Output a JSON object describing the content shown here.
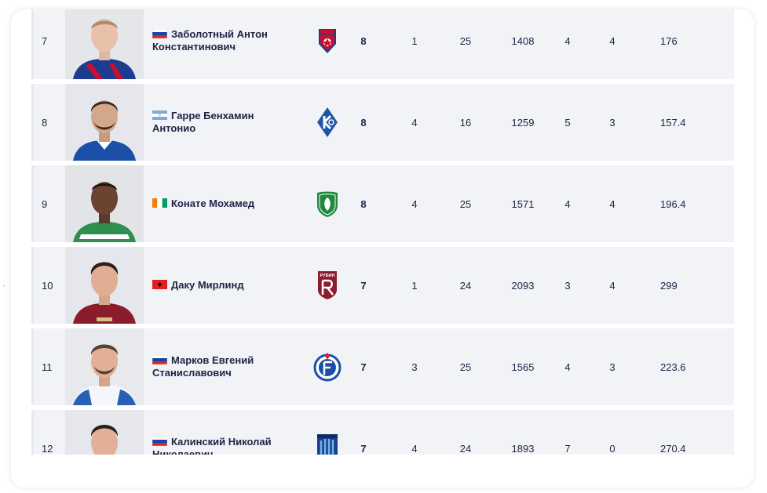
{
  "colors": {
    "row_bg": "#f2f3f7",
    "text": "#202345"
  },
  "rows": [
    {
      "rank": "7",
      "name_line1": "Заболотный Антон",
      "name_line2": "Константинович",
      "flag": "russia-flag-icon",
      "club": "cska-logo-icon",
      "goals": "8",
      "s1": "1",
      "s2": "25",
      "s3": "1408",
      "s4": "4",
      "s5": "4",
      "s6": "176"
    },
    {
      "rank": "8",
      "name_line1": "Гарре Бенхамин",
      "name_line2": "Антонио",
      "flag": "argentina-flag-icon",
      "club": "krylya-sovetov-logo-icon",
      "goals": "8",
      "s1": "4",
      "s2": "16",
      "s3": "1259",
      "s4": "5",
      "s5": "3",
      "s6": "157.4"
    },
    {
      "rank": "9",
      "name_line1": "Конате Мохамед",
      "name_line2": "",
      "flag": "ivory-coast-flag-icon",
      "club": "akhmat-logo-icon",
      "goals": "8",
      "s1": "4",
      "s2": "25",
      "s3": "1571",
      "s4": "4",
      "s5": "4",
      "s6": "196.4"
    },
    {
      "rank": "10",
      "name_line1": "Даку Мирлинд",
      "name_line2": "",
      "flag": "albania-flag-icon",
      "club": "rubin-logo-icon",
      "club_text": "РУБИН",
      "goals": "7",
      "s1": "1",
      "s2": "24",
      "s3": "2093",
      "s4": "3",
      "s5": "4",
      "s6": "299"
    },
    {
      "rank": "11",
      "name_line1": "Марков Евгений",
      "name_line2": "Станиславович",
      "flag": "russia-flag-icon",
      "club": "fakel-logo-icon",
      "goals": "7",
      "s1": "3",
      "s2": "25",
      "s3": "1565",
      "s4": "4",
      "s5": "3",
      "s6": "223.6"
    },
    {
      "rank": "12",
      "name_line1": "Калинский Николай",
      "name_line2": "Николаевич",
      "flag": "russia-flag-icon",
      "club": "pari-nn-logo-icon",
      "goals": "7",
      "s1": "4",
      "s2": "24",
      "s3": "1893",
      "s4": "7",
      "s5": "0",
      "s6": "270.4"
    }
  ]
}
